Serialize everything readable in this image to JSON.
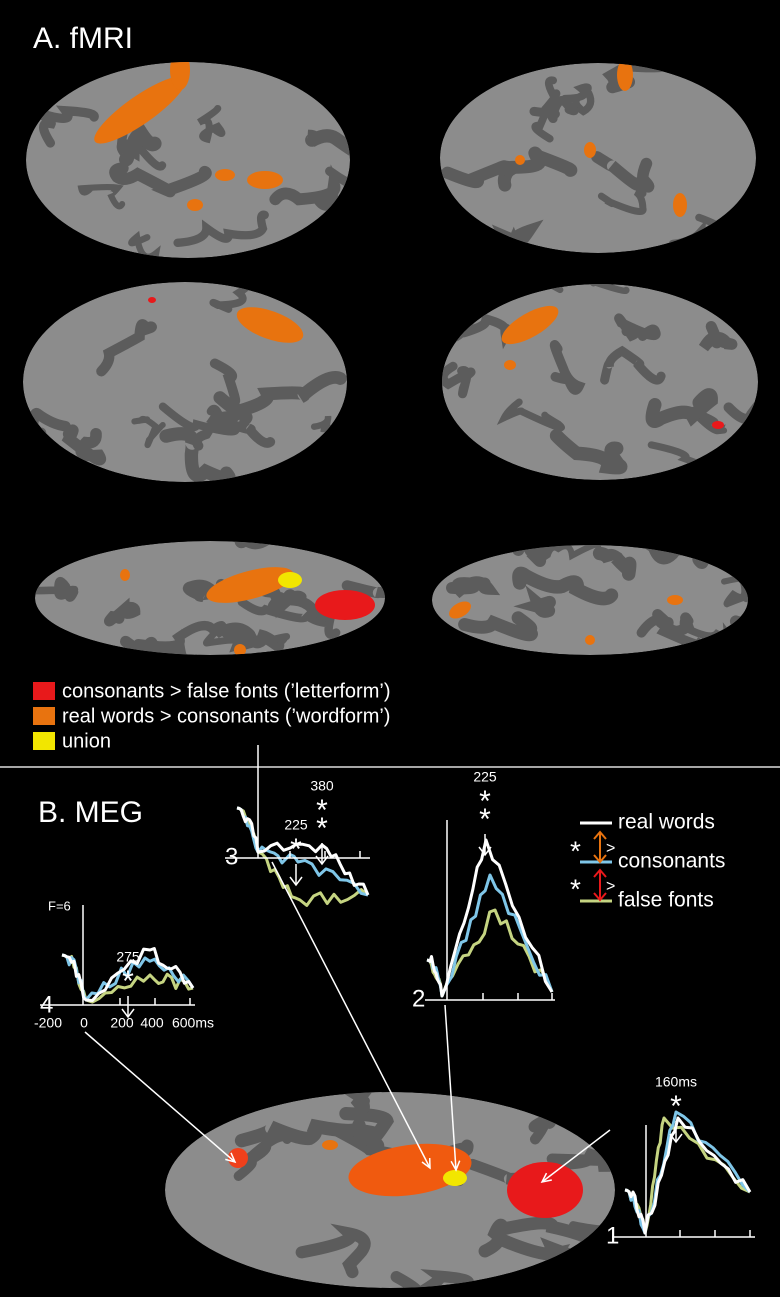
{
  "panel_a": {
    "title": "A. fMRI",
    "legend": [
      {
        "label": "consonants > false fonts (’letterform’)",
        "color": "#e8191b"
      },
      {
        "label": "real words > consonants (’wordform’)",
        "color": "#e8730f"
      },
      {
        "label": "union",
        "color": "#f2e600"
      }
    ]
  },
  "panel_b": {
    "title": "B. MEG",
    "legend": {
      "series": [
        {
          "name": "real words",
          "color": "#ffffff"
        },
        {
          "name": "consonants",
          "color": "#7fc6e8"
        },
        {
          "name": "false fonts",
          "color": "#c5d481"
        }
      ],
      "comparisons": [
        {
          "star": "*",
          "sign": ">",
          "color": "#e8730f"
        },
        {
          "star": "*",
          "sign": ">",
          "color": "#e8191b"
        }
      ]
    },
    "plots": [
      {
        "number": "4",
        "scale": "F=6",
        "x_tick_labels": [
          "-200",
          "0",
          "200",
          "400",
          "600ms"
        ],
        "peaks": [
          {
            "latency": "275",
            "stars": [
              {
                "text": "*",
                "color": "#e8191b"
              }
            ]
          }
        ]
      },
      {
        "number": "3",
        "peaks": [
          {
            "latency": "225",
            "stars": [
              {
                "text": "*",
                "color": "#e8191b"
              }
            ]
          },
          {
            "latency": "380",
            "stars": [
              {
                "text": "*",
                "color": "#e8730f"
              },
              {
                "text": "*",
                "color": "#e8191b"
              }
            ]
          }
        ]
      },
      {
        "number": "2",
        "peaks": [
          {
            "latency": "225",
            "stars": [
              {
                "text": "*",
                "color": "#e8730f"
              },
              {
                "text": "*",
                "color": "#e8191b"
              }
            ]
          }
        ]
      },
      {
        "number": "1",
        "peaks": [
          {
            "latency": "160ms",
            "stars": [
              {
                "text": "*",
                "color": "#e8191b"
              }
            ]
          }
        ]
      }
    ]
  }
}
